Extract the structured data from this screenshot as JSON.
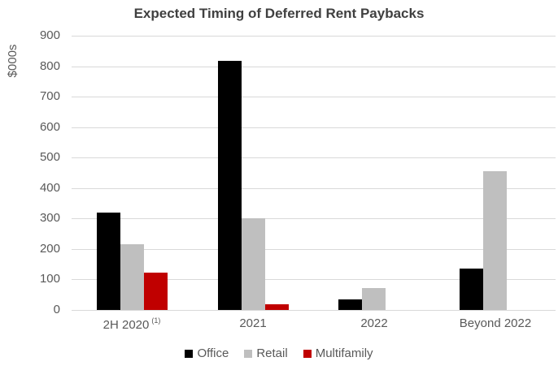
{
  "chart_data": {
    "type": "bar",
    "title": "Expected Timing of Deferred Rent Paybacks",
    "ylabel": "$000s",
    "xlabel": "",
    "categories": [
      "2H 2020",
      "2021",
      "2022",
      "Beyond 2022"
    ],
    "category_superscripts": [
      "(1)",
      "",
      "",
      ""
    ],
    "series": [
      {
        "name": "Office",
        "color": "#000000",
        "values": [
          320,
          818,
          35,
          135
        ]
      },
      {
        "name": "Retail",
        "color": "#BFBFBF",
        "values": [
          215,
          302,
          73,
          456
        ]
      },
      {
        "name": "Multifamily",
        "color": "#C00000",
        "values": [
          123,
          18,
          0,
          0
        ]
      }
    ],
    "ylim": [
      0,
      900
    ],
    "yticks": [
      0,
      100,
      200,
      300,
      400,
      500,
      600,
      700,
      800,
      900
    ],
    "grid": "horizontal",
    "legend_position": "bottom"
  },
  "colors": {
    "background": "#FFFFFF",
    "title_text": "#404040",
    "axis_text": "#595959",
    "gridline": "#D9D9D9"
  }
}
